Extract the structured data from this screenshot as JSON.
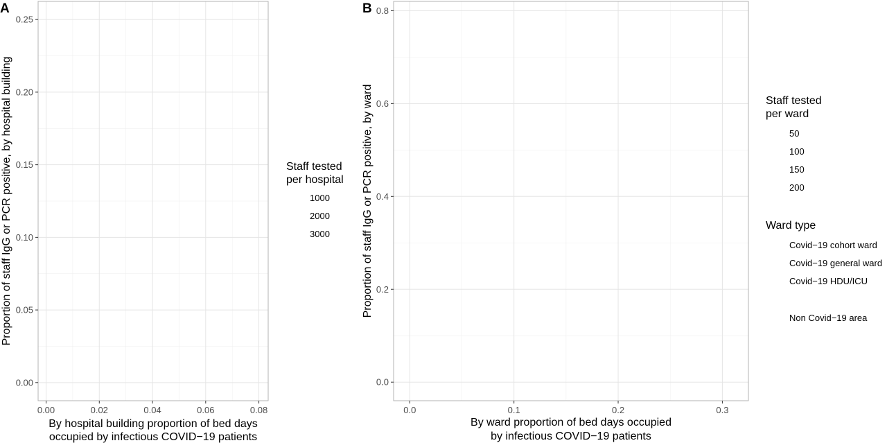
{
  "chart_data": [
    {
      "panel": "A",
      "type": "scatter",
      "xlabel_lines": [
        "By hospital building proportion of bed days",
        "occupied by infectious COVID−19 patients"
      ],
      "ylabel": "Proportion of staff IgG or PCR positive, by hospital building",
      "xlim": [
        -0.003,
        0.0835
      ],
      "ylim": [
        -0.0125,
        0.2625
      ],
      "x_ticks": [
        0.0,
        0.02,
        0.04,
        0.06,
        0.08
      ],
      "x_tick_labels": [
        "0.00",
        "0.02",
        "0.04",
        "0.06",
        "0.08"
      ],
      "y_ticks": [
        0.0,
        0.05,
        0.1,
        0.15,
        0.2,
        0.25
      ],
      "y_tick_labels": [
        "0.00",
        "0.05",
        "0.10",
        "0.15",
        "0.20",
        "0.25"
      ],
      "grid": true,
      "series": [],
      "legends": [
        {
          "title_lines": [
            "Staff tested",
            "per hospital"
          ],
          "entries": [
            "1000",
            "2000",
            "3000"
          ]
        }
      ]
    },
    {
      "panel": "B",
      "type": "scatter",
      "xlabel_lines": [
        "By ward proportion of bed days occupied",
        "by infectious COVID−19 patients"
      ],
      "ylabel": "Proportion of staff IgG or PCR positive, by ward",
      "xlim": [
        -0.0155,
        0.325
      ],
      "ylim": [
        -0.04,
        0.82
      ],
      "x_ticks": [
        0.0,
        0.1,
        0.2,
        0.3
      ],
      "x_tick_labels": [
        "0.0",
        "0.1",
        "0.2",
        "0.3"
      ],
      "y_ticks": [
        0.0,
        0.2,
        0.4,
        0.6,
        0.8
      ],
      "y_tick_labels": [
        "0.0",
        "0.2",
        "0.4",
        "0.6",
        "0.8"
      ],
      "grid": true,
      "series": [],
      "legends": [
        {
          "title_lines": [
            "Staff tested",
            "per ward"
          ],
          "entries": [
            "50",
            "100",
            "150",
            "200"
          ]
        },
        {
          "title_lines": [
            "Ward type"
          ],
          "entries": [
            "Covid−19 cohort ward",
            "Covid−19 general ward",
            "Covid−19 HDU/ICU",
            "Non Covid−19 area"
          ]
        }
      ]
    }
  ]
}
